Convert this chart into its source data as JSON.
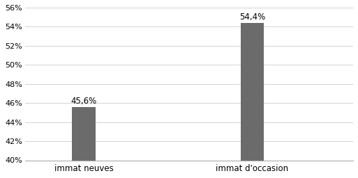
{
  "categories": [
    "immat neuves",
    "immat d'occasion"
  ],
  "values": [
    45.6,
    54.4
  ],
  "bar_color": "#6b6b6b",
  "bar_labels": [
    "45,6%",
    "54,4%"
  ],
  "ylim": [
    40,
    56
  ],
  "yticks": [
    40,
    42,
    44,
    46,
    48,
    50,
    52,
    54,
    56
  ],
  "background_color": "#ffffff",
  "label_fontsize": 8.5,
  "tick_fontsize": 8,
  "bar_width": 0.28,
  "x_positions": [
    1,
    3
  ],
  "xlim": [
    0.3,
    4.2
  ]
}
